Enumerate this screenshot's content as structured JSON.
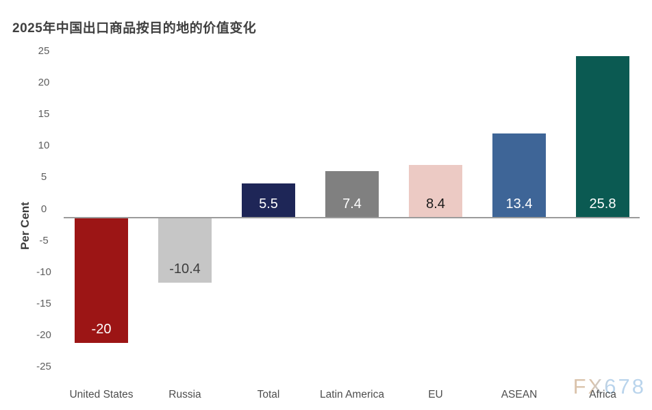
{
  "title": "2025年中国出口商品按目的地的价值变化",
  "watermark": "FX678",
  "chart_data": {
    "type": "bar",
    "title": "2025年中国出口商品按目的地的价值变化",
    "xlabel": "",
    "ylabel": "Per Cent",
    "ylim": [
      -25,
      25
    ],
    "ytick_step": 5,
    "yticks": [
      25,
      20,
      15,
      10,
      5,
      0,
      -5,
      -10,
      -15,
      -20,
      -25
    ],
    "grid": false,
    "legend": false,
    "zero_line_color": "#9b9b9b",
    "categories": [
      "United States",
      "Russia",
      "Total",
      "Latin America",
      "EU",
      "ASEAN",
      "Africa"
    ],
    "values": [
      -20,
      -10.4,
      5.5,
      7.4,
      8.4,
      13.4,
      25.8
    ],
    "value_labels": [
      "-20",
      "-10.4",
      "5.5",
      "7.4",
      "8.4",
      "13.4",
      "25.8"
    ],
    "bar_colors": [
      "#9c1515",
      "#c6c6c6",
      "#1e2657",
      "#808080",
      "#eccac4",
      "#3e6597",
      "#0b5a52"
    ],
    "value_label_colors": [
      "#ffffff",
      "#3d3d3d",
      "#ffffff",
      "#ffffff",
      "#1a1a1a",
      "#ffffff",
      "#ffffff"
    ],
    "title_color": "#3f3f3f",
    "tick_label_color": "#5d5d5d",
    "category_label_color": "#4d4d4d",
    "watermark_colors": [
      "#d9c0a7",
      "#b6d2ec"
    ]
  }
}
